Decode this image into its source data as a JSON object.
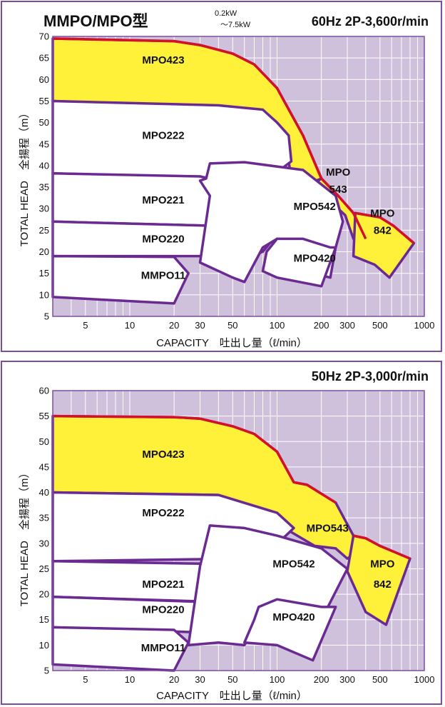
{
  "header": {
    "title": "MMPO/MPO型",
    "power_range_top": "0.2kW",
    "power_range_bottom": "～7.5kW"
  },
  "colors": {
    "plot_background": "#cfc0dc",
    "grid": "#ffffff",
    "curve_boundary": "#6a2a92",
    "curve_max": "#d4102a",
    "yellow_fill": "#fff03a",
    "white_fill": "#ffffff",
    "frame": "#7a4f9e"
  },
  "chart_data": [
    {
      "type": "area",
      "name": "60Hz chart",
      "title": "60Hz 2P-3,600r/min",
      "xlabel": "CAPACITY　吐出し量（ℓ/min）",
      "ylabel": "TOTAL HEAD　全揚程（m）",
      "xscale": "log",
      "xlim": [
        3,
        1000
      ],
      "ylim": [
        5,
        70
      ],
      "xticks": [
        5,
        10,
        20,
        30,
        50,
        100,
        200,
        300,
        500,
        1000
      ],
      "yticks": [
        5,
        10,
        15,
        20,
        25,
        30,
        35,
        40,
        45,
        50,
        55,
        60,
        65,
        70
      ],
      "regions": [
        {
          "label": "MPO423",
          "fill": "yellow",
          "points": [
            [
              3,
              69.5
            ],
            [
              20,
              68.9
            ],
            [
              30,
              68
            ],
            [
              50,
              66
            ],
            [
              70,
              63.5
            ],
            [
              100,
              58
            ],
            [
              150,
              47
            ],
            [
              200,
              37
            ],
            [
              100,
              33
            ],
            [
              125,
              37
            ],
            [
              120,
              41
            ],
            [
              100,
              46
            ],
            [
              40,
              52
            ],
            [
              20,
              54
            ],
            [
              3,
              55
            ]
          ]
        },
        {
          "label": "MPO543",
          "fill": "yellow",
          "points": [
            [
              200,
              37
            ],
            [
              260,
              33
            ],
            [
              330,
              29
            ],
            [
              400,
              23
            ],
            [
              330,
              23
            ],
            [
              290,
              28.5
            ],
            [
              210,
              33
            ],
            [
              150,
              34
            ]
          ]
        },
        {
          "label": "MPO842",
          "fill": "yellow",
          "points": [
            [
              340,
              29
            ],
            [
              500,
              28
            ],
            [
              620,
              26
            ],
            [
              850,
              22
            ],
            [
              580,
              14
            ],
            [
              460,
              17
            ],
            [
              330,
              19
            ]
          ]
        },
        {
          "label": "MPO222",
          "fill": "white",
          "points": [
            [
              3,
              55
            ],
            [
              40,
              54
            ],
            [
              80,
              53
            ],
            [
              100,
              50
            ],
            [
              120,
              47
            ],
            [
              125,
              41
            ],
            [
              100,
              38.5
            ],
            [
              60,
              37
            ],
            [
              3,
              38.2
            ]
          ]
        },
        {
          "label": "MPO221",
          "fill": "white",
          "points": [
            [
              3,
              38.2
            ],
            [
              30,
              37.5
            ],
            [
              60,
              35
            ],
            [
              100,
              31
            ],
            [
              100,
              28
            ],
            [
              40,
              26
            ],
            [
              3,
              27
            ]
          ]
        },
        {
          "label": "MPO220",
          "fill": "white",
          "points": [
            [
              3,
              27
            ],
            [
              40,
              26
            ],
            [
              100,
              24
            ],
            [
              80,
              20
            ],
            [
              60,
              18.5
            ],
            [
              30,
              19
            ],
            [
              3,
              19
            ]
          ]
        },
        {
          "label": "MMPO11",
          "fill": "white",
          "points": [
            [
              3,
              19
            ],
            [
              20,
              18.8
            ],
            [
              25,
              15
            ],
            [
              20,
              8
            ],
            [
              3,
              9.5
            ]
          ]
        },
        {
          "label": "MPO542",
          "fill": "white",
          "points": [
            [
              35,
              40.5
            ],
            [
              60,
              40.8
            ],
            [
              150,
              39
            ],
            [
              250,
              33
            ],
            [
              280,
              27
            ],
            [
              250,
              21
            ],
            [
              230,
              14
            ],
            [
              200,
              14.5
            ],
            [
              150,
              19
            ],
            [
              100,
              23
            ],
            [
              80,
              21
            ],
            [
              60,
              13
            ],
            [
              50,
              14
            ],
            [
              30,
              17.5
            ],
            [
              35,
              33
            ],
            [
              30,
              36.5
            ],
            [
              33,
              37
            ]
          ]
        },
        {
          "label": "MPO420",
          "fill": "white",
          "points": [
            [
              100,
              23
            ],
            [
              150,
              23
            ],
            [
              230,
              21
            ],
            [
              250,
              21
            ],
            [
              200,
              12
            ],
            [
              100,
              14
            ],
            [
              80,
              15.5
            ],
            [
              85,
              20
            ]
          ]
        }
      ],
      "model_labels": [
        "MPO423",
        "MPO222",
        "MPO221",
        "MPO220",
        "MMPO11",
        "MPO542",
        "MPO420",
        "MPO 543",
        "MPO 842"
      ]
    },
    {
      "type": "area",
      "name": "50Hz chart",
      "title": "50Hz 2P-3,000r/min",
      "xlabel": "CAPACITY　吐出し量（ℓ/min）",
      "ylabel": "TOTAL HEAD　全揚程（m）",
      "xscale": "log",
      "xlim": [
        3,
        1000
      ],
      "ylim": [
        5,
        60
      ],
      "xticks": [
        5,
        10,
        20,
        30,
        50,
        100,
        200,
        300,
        500,
        1000
      ],
      "yticks": [
        5,
        10,
        15,
        20,
        25,
        30,
        35,
        40,
        45,
        50,
        55,
        60
      ],
      "regions": [
        {
          "label": "MPO423",
          "fill": "yellow",
          "points": [
            [
              3,
              55
            ],
            [
              20,
              54.8
            ],
            [
              30,
              54.5
            ],
            [
              50,
              53
            ],
            [
              70,
              51.5
            ],
            [
              100,
              48
            ],
            [
              130,
              42
            ],
            [
              160,
              41.5
            ],
            [
              250,
              38
            ],
            [
              330,
              31.5
            ],
            [
              400,
              29.5
            ],
            [
              300,
              27
            ],
            [
              250,
              29
            ],
            [
              180,
              29.5
            ],
            [
              120,
              32.5
            ],
            [
              100,
              31.5
            ],
            [
              40,
              39.5
            ],
            [
              3,
              40
            ]
          ]
        },
        {
          "label": "MPO842",
          "fill": "yellow",
          "points": [
            [
              330,
              31.5
            ],
            [
              400,
              31
            ],
            [
              500,
              29.5
            ],
            [
              800,
              27
            ],
            [
              550,
              14
            ],
            [
              400,
              16.5
            ],
            [
              300,
              24.5
            ]
          ]
        },
        {
          "label": "MPO222",
          "fill": "white",
          "points": [
            [
              3,
              40
            ],
            [
              40,
              39.5
            ],
            [
              100,
              36
            ],
            [
              130,
              33
            ],
            [
              110,
              31
            ],
            [
              60,
              27
            ],
            [
              3,
              26.5
            ]
          ]
        },
        {
          "label": "MPO221",
          "fill": "white",
          "points": [
            [
              3,
              26.5
            ],
            [
              30,
              26
            ],
            [
              60,
              24
            ],
            [
              75,
              17.5
            ],
            [
              40,
              18.5
            ],
            [
              3,
              19.5
            ]
          ]
        },
        {
          "label": "MPO220",
          "fill": "white",
          "points": [
            [
              3,
              19.5
            ],
            [
              30,
              18.5
            ],
            [
              75,
              17.5
            ],
            [
              75,
              15
            ],
            [
              50,
              13
            ],
            [
              30,
              12.5
            ],
            [
              3,
              13.5
            ]
          ]
        },
        {
          "label": "MMPO11",
          "fill": "white",
          "points": [
            [
              3,
              13.5
            ],
            [
              20,
              13
            ],
            [
              25,
              10.5
            ],
            [
              20,
              5
            ],
            [
              3,
              6.2
            ]
          ]
        },
        {
          "label": "MPO542",
          "fill": "white",
          "points": [
            [
              30,
              25.5
            ],
            [
              35,
              33.5
            ],
            [
              60,
              33
            ],
            [
              100,
              31.5
            ],
            [
              200,
              29
            ],
            [
              300,
              25
            ],
            [
              200,
              15
            ],
            [
              150,
              12
            ],
            [
              100,
              15
            ],
            [
              80,
              16
            ],
            [
              60,
              10
            ],
            [
              40,
              10.5
            ],
            [
              25,
              10
            ]
          ]
        },
        {
          "label": "MPO420",
          "fill": "white",
          "points": [
            [
              75,
              17.5
            ],
            [
              100,
              19
            ],
            [
              200,
              17.5
            ],
            [
              250,
              17.5
            ],
            [
              175,
              7
            ],
            [
              100,
              10
            ],
            [
              60,
              10.5
            ],
            [
              70,
              15
            ]
          ]
        }
      ],
      "model_labels": [
        "MPO423",
        "MPO222",
        "MPO221",
        "MPO220",
        "MMPO11",
        "MPO542",
        "MPO420",
        "MPO543",
        "MPO 842"
      ]
    }
  ]
}
